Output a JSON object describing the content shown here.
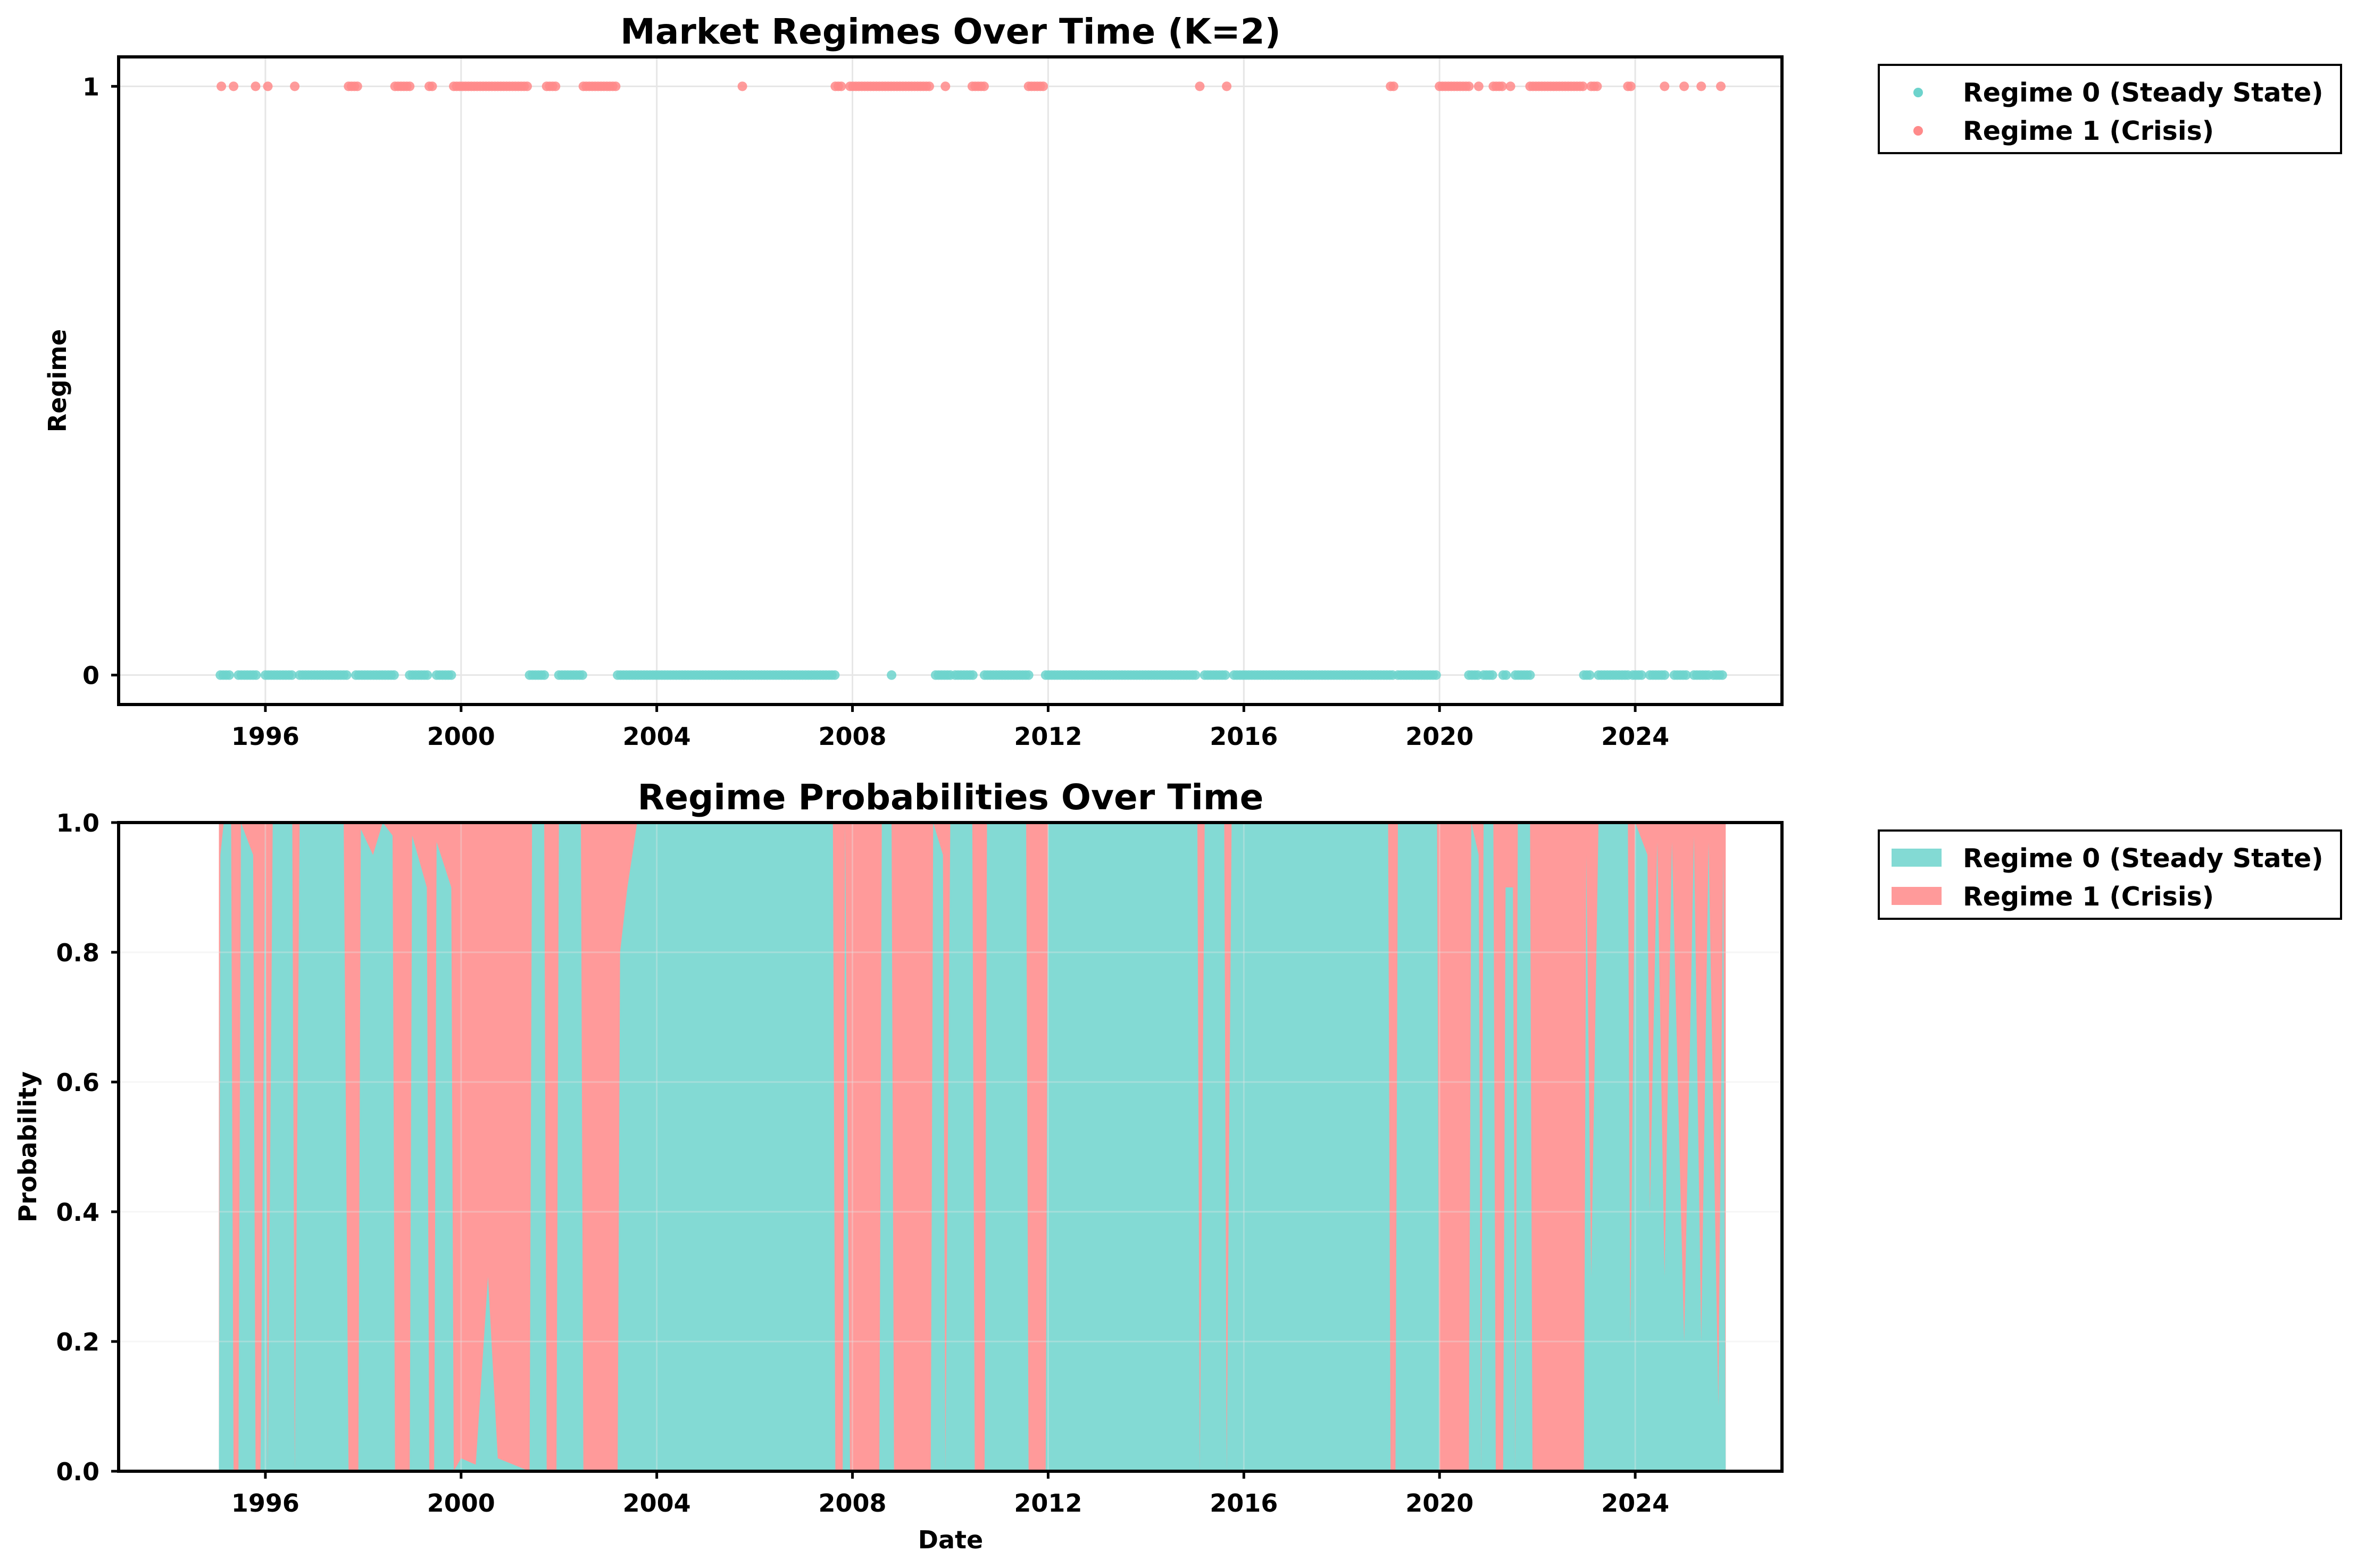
{
  "colors": {
    "regime0": "#6dd3cc",
    "regime1": "#ff8a8a",
    "regime0_fill": "#83dad4",
    "regime1_fill": "#ff9a9a"
  },
  "chart_data": [
    {
      "type": "scatter",
      "title": "Market Regimes Over Time (K=2)",
      "xlabel": "",
      "ylabel": "Regime",
      "xlim": [
        1993.0,
        2027.0
      ],
      "ylim": [
        -0.05,
        1.05
      ],
      "x_ticks": [
        "1996",
        "2000",
        "2004",
        "2008",
        "2012",
        "2016",
        "2020",
        "2024"
      ],
      "x_tick_values": [
        1996,
        2000,
        2004,
        2008,
        2012,
        2016,
        2020,
        2024
      ],
      "y_ticks": [
        "0",
        "1"
      ],
      "y_tick_values": [
        0,
        1
      ],
      "grid": true,
      "legend_position": "outside-top-right",
      "series": [
        {
          "name": "Regime 0 (Steady State)",
          "y": 0,
          "color_key": "regime0",
          "periods": [
            [
              1995.08,
              1995.3
            ],
            [
              1995.45,
              1995.85
            ],
            [
              1996.0,
              1996.55
            ],
            [
              1996.7,
              1997.7
            ],
            [
              1997.85,
              1998.65
            ],
            [
              1998.95,
              1999.35
            ],
            [
              1999.5,
              1999.85
            ],
            [
              2001.4,
              2001.75
            ],
            [
              2002.0,
              2002.5
            ],
            [
              2003.2,
              2007.65
            ],
            [
              2008.8,
              2008.8
            ],
            [
              2009.7,
              2010.0
            ],
            [
              2010.1,
              2010.5
            ],
            [
              2010.7,
              2011.6
            ],
            [
              2011.95,
              2015.05
            ],
            [
              2015.2,
              2015.65
            ],
            [
              2015.8,
              2019.05
            ],
            [
              2019.15,
              2019.95
            ],
            [
              2020.6,
              2020.8
            ],
            [
              2020.9,
              2021.1
            ],
            [
              2021.3,
              2021.4
            ],
            [
              2021.55,
              2021.85
            ],
            [
              2022.95,
              2023.1
            ],
            [
              2023.25,
              2023.85
            ],
            [
              2023.95,
              2024.15
            ],
            [
              2024.3,
              2024.65
            ],
            [
              2024.8,
              2025.05
            ],
            [
              2025.2,
              2025.5
            ],
            [
              2025.6,
              2025.8
            ]
          ]
        },
        {
          "name": "Regime 1 (Crisis)",
          "y": 1,
          "color_key": "regime1",
          "periods": [
            [
              1995.1,
              1995.1
            ],
            [
              1995.35,
              1995.35
            ],
            [
              1995.8,
              1995.8
            ],
            [
              1996.05,
              1996.05
            ],
            [
              1996.6,
              1996.6
            ],
            [
              1997.7,
              1997.9
            ],
            [
              1998.65,
              1998.95
            ],
            [
              1999.35,
              1999.45
            ],
            [
              1999.85,
              2001.4
            ],
            [
              2001.75,
              2001.95
            ],
            [
              2002.5,
              2003.2
            ],
            [
              2005.75,
              2005.75
            ],
            [
              2007.65,
              2007.8
            ],
            [
              2007.95,
              2009.6
            ],
            [
              2009.9,
              2009.9
            ],
            [
              2010.45,
              2010.7
            ],
            [
              2011.6,
              2011.95
            ],
            [
              2015.1,
              2015.1
            ],
            [
              2015.65,
              2015.65
            ],
            [
              2019.0,
              2019.1
            ],
            [
              2020.0,
              2020.6
            ],
            [
              2020.8,
              2020.8
            ],
            [
              2021.1,
              2021.3
            ],
            [
              2021.45,
              2021.45
            ],
            [
              2021.85,
              2022.95
            ],
            [
              2023.1,
              2023.25
            ],
            [
              2023.85,
              2023.95
            ],
            [
              2024.6,
              2024.6
            ],
            [
              2025.0,
              2025.0
            ],
            [
              2025.35,
              2025.35
            ],
            [
              2025.75,
              2025.75
            ]
          ]
        }
      ]
    },
    {
      "type": "area",
      "title": "Regime Probabilities Over Time",
      "xlabel": "Date",
      "ylabel": "Probability",
      "xlim": [
        1993.0,
        2027.0
      ],
      "ylim": [
        0.0,
        1.0
      ],
      "stacked": true,
      "x_ticks": [
        "1996",
        "2000",
        "2004",
        "2008",
        "2012",
        "2016",
        "2020",
        "2024"
      ],
      "x_tick_values": [
        1996,
        2000,
        2004,
        2008,
        2012,
        2016,
        2020,
        2024
      ],
      "y_ticks": [
        "0.0",
        "0.2",
        "0.4",
        "0.6",
        "0.8",
        "1.0"
      ],
      "y_tick_values": [
        0.0,
        0.2,
        0.4,
        0.6,
        0.8,
        1.0
      ],
      "grid": true,
      "legend_position": "outside-top-right",
      "series": [
        {
          "name": "Regime 0 (Steady State)",
          "color_key": "regime0_fill",
          "points": [
            [
              1995.05,
              0.0
            ],
            [
              1995.08,
              0.95
            ],
            [
              1995.15,
              1.0
            ],
            [
              1995.3,
              1.0
            ],
            [
              1995.35,
              0.0
            ],
            [
              1995.45,
              0.0
            ],
            [
              1995.5,
              1.0
            ],
            [
              1995.75,
              0.95
            ],
            [
              1995.8,
              0.0
            ],
            [
              1995.9,
              0.0
            ],
            [
              1996.0,
              1.0
            ],
            [
              1996.05,
              0.0
            ],
            [
              1996.15,
              1.0
            ],
            [
              1996.55,
              1.0
            ],
            [
              1996.6,
              0.0
            ],
            [
              1996.7,
              1.0
            ],
            [
              1997.6,
              1.0
            ],
            [
              1997.7,
              0.0
            ],
            [
              1997.9,
              0.0
            ],
            [
              1997.95,
              0.99
            ],
            [
              1998.2,
              0.95
            ],
            [
              1998.4,
              1.0
            ],
            [
              1998.6,
              0.98
            ],
            [
              1998.65,
              0.0
            ],
            [
              1998.95,
              0.0
            ],
            [
              1999.0,
              0.98
            ],
            [
              1999.3,
              0.9
            ],
            [
              1999.35,
              0.0
            ],
            [
              1999.45,
              0.0
            ],
            [
              1999.5,
              0.97
            ],
            [
              1999.8,
              0.9
            ],
            [
              1999.85,
              0.0
            ],
            [
              2000.0,
              0.02
            ],
            [
              2000.3,
              0.01
            ],
            [
              2000.55,
              0.3
            ],
            [
              2000.75,
              0.02
            ],
            [
              2001.4,
              0.0
            ],
            [
              2001.45,
              1.0
            ],
            [
              2001.7,
              1.0
            ],
            [
              2001.75,
              0.0
            ],
            [
              2001.95,
              0.0
            ],
            [
              2002.0,
              1.0
            ],
            [
              2002.45,
              1.0
            ],
            [
              2002.5,
              0.0
            ],
            [
              2003.2,
              0.0
            ],
            [
              2003.25,
              0.8
            ],
            [
              2003.4,
              0.9
            ],
            [
              2003.6,
              1.0
            ],
            [
              2007.6,
              1.0
            ],
            [
              2007.65,
              0.0
            ],
            [
              2007.8,
              0.0
            ],
            [
              2007.85,
              1.0
            ],
            [
              2007.95,
              0.0
            ],
            [
              2008.55,
              0.0
            ],
            [
              2008.6,
              1.0
            ],
            [
              2008.8,
              1.0
            ],
            [
              2008.85,
              0.0
            ],
            [
              2009.6,
              0.0
            ],
            [
              2009.65,
              1.0
            ],
            [
              2009.85,
              0.95
            ],
            [
              2009.9,
              0.0
            ],
            [
              2010.0,
              1.0
            ],
            [
              2010.45,
              1.0
            ],
            [
              2010.5,
              0.0
            ],
            [
              2010.7,
              0.0
            ],
            [
              2010.75,
              1.0
            ],
            [
              2011.55,
              1.0
            ],
            [
              2011.6,
              0.0
            ],
            [
              2011.95,
              0.0
            ],
            [
              2012.0,
              1.0
            ],
            [
              2015.05,
              1.0
            ],
            [
              2015.1,
              0.0
            ],
            [
              2015.2,
              1.0
            ],
            [
              2015.6,
              1.0
            ],
            [
              2015.65,
              0.0
            ],
            [
              2015.75,
              1.0
            ],
            [
              2018.95,
              1.0
            ],
            [
              2019.0,
              0.0
            ],
            [
              2019.1,
              0.0
            ],
            [
              2019.15,
              1.0
            ],
            [
              2019.95,
              1.0
            ],
            [
              2020.0,
              0.0
            ],
            [
              2020.6,
              0.0
            ],
            [
              2020.65,
              1.0
            ],
            [
              2020.8,
              0.95
            ],
            [
              2020.85,
              0.0
            ],
            [
              2020.9,
              1.0
            ],
            [
              2021.1,
              1.0
            ],
            [
              2021.15,
              0.0
            ],
            [
              2021.3,
              0.0
            ],
            [
              2021.35,
              0.9
            ],
            [
              2021.5,
              0.9
            ],
            [
              2021.55,
              0.0
            ],
            [
              2021.6,
              1.0
            ],
            [
              2021.85,
              1.0
            ],
            [
              2021.9,
              0.0
            ],
            [
              2022.95,
              0.0
            ],
            [
              2023.0,
              0.95
            ],
            [
              2023.1,
              0.3
            ],
            [
              2023.25,
              1.0
            ],
            [
              2023.85,
              1.0
            ],
            [
              2023.9,
              0.2
            ],
            [
              2024.0,
              1.0
            ],
            [
              2024.25,
              0.95
            ],
            [
              2024.3,
              0.4
            ],
            [
              2024.45,
              0.97
            ],
            [
              2024.6,
              0.3
            ],
            [
              2024.75,
              0.97
            ],
            [
              2025.0,
              0.2
            ],
            [
              2025.2,
              0.98
            ],
            [
              2025.35,
              0.2
            ],
            [
              2025.5,
              0.97
            ],
            [
              2025.7,
              0.1
            ],
            [
              2025.8,
              0.95
            ],
            [
              2025.85,
              0.0
            ]
          ]
        },
        {
          "name": "Regime 1 (Crisis)",
          "color_key": "regime1_fill",
          "points": "1 - Regime 0 probability"
        }
      ]
    }
  ]
}
